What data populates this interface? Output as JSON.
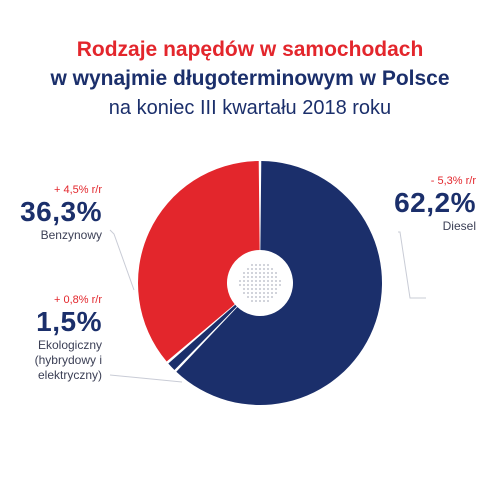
{
  "chart_data": {
    "type": "pie",
    "title": "Rodzaje napędów w samochodach",
    "title_line2": "w wynajmie długoterminowym w Polsce",
    "subtitle": "na koniec III kwartału 2018 roku",
    "slices": [
      {
        "name": "Diesel",
        "value": 62.2,
        "label": "62,2%",
        "change": "- 5,3% r/r",
        "color": "#1b2f6b"
      },
      {
        "name": "Ekologiczny (hybrydowy i elektryczny)",
        "name_lines": [
          "Ekologiczny",
          "(hybrydowy i",
          "elektryczny)"
        ],
        "value": 1.5,
        "label": "1,5%",
        "change": "+ 0,8% r/r",
        "color": "#1b2f6b"
      },
      {
        "name": "Benzynowy",
        "value": 36.3,
        "label": "36,3%",
        "change": "+ 4,5% r/r",
        "color": "#e3262c"
      }
    ]
  }
}
